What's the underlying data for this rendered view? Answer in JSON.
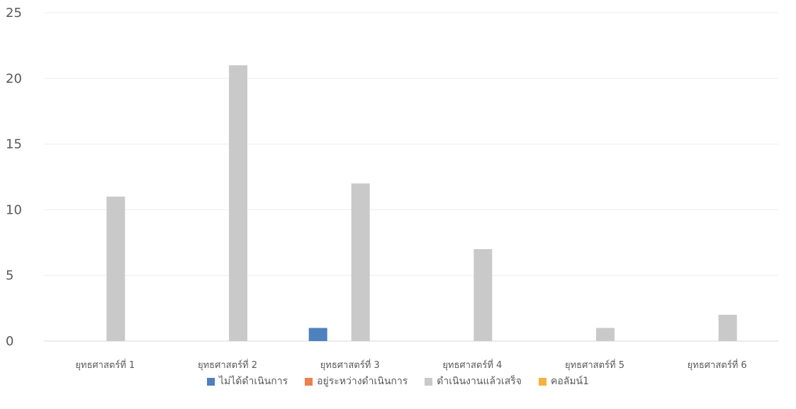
{
  "chart_data": {
    "type": "bar",
    "title": "",
    "xlabel": "",
    "ylabel": "",
    "ylim": [
      0,
      25
    ],
    "yticks": [
      0,
      5,
      10,
      15,
      20,
      25
    ],
    "grid": true,
    "legend_position": "bottom",
    "categories": [
      "ยุทธศาสตร์ที่ 1",
      "ยุทธศาสตร์ที่ 2",
      "ยุทธศาสตร์ที่ 3",
      "ยุทธศาสตร์ที่ 4",
      "ยุทธศาสตร์ที่ 5",
      "ยุทธศาสตร์ที่ 6"
    ],
    "series": [
      {
        "name": "ไม่ได้ดำเนินการ",
        "color": "#4e81bd",
        "values": [
          0,
          0,
          1,
          0,
          0,
          0
        ]
      },
      {
        "name": "อยู่ระหว่างดำเนินการ",
        "color": "#ef7f4f",
        "values": [
          0,
          0,
          0,
          0,
          0,
          0
        ]
      },
      {
        "name": "ดำเนินงานแล้วเสร็จ",
        "color": "#c9c9c9",
        "values": [
          11,
          21,
          12,
          7,
          1,
          2
        ]
      },
      {
        "name": "คอลัมน์1",
        "color": "#f5b041",
        "values": [
          0,
          0,
          0,
          0,
          0,
          0
        ]
      }
    ]
  }
}
